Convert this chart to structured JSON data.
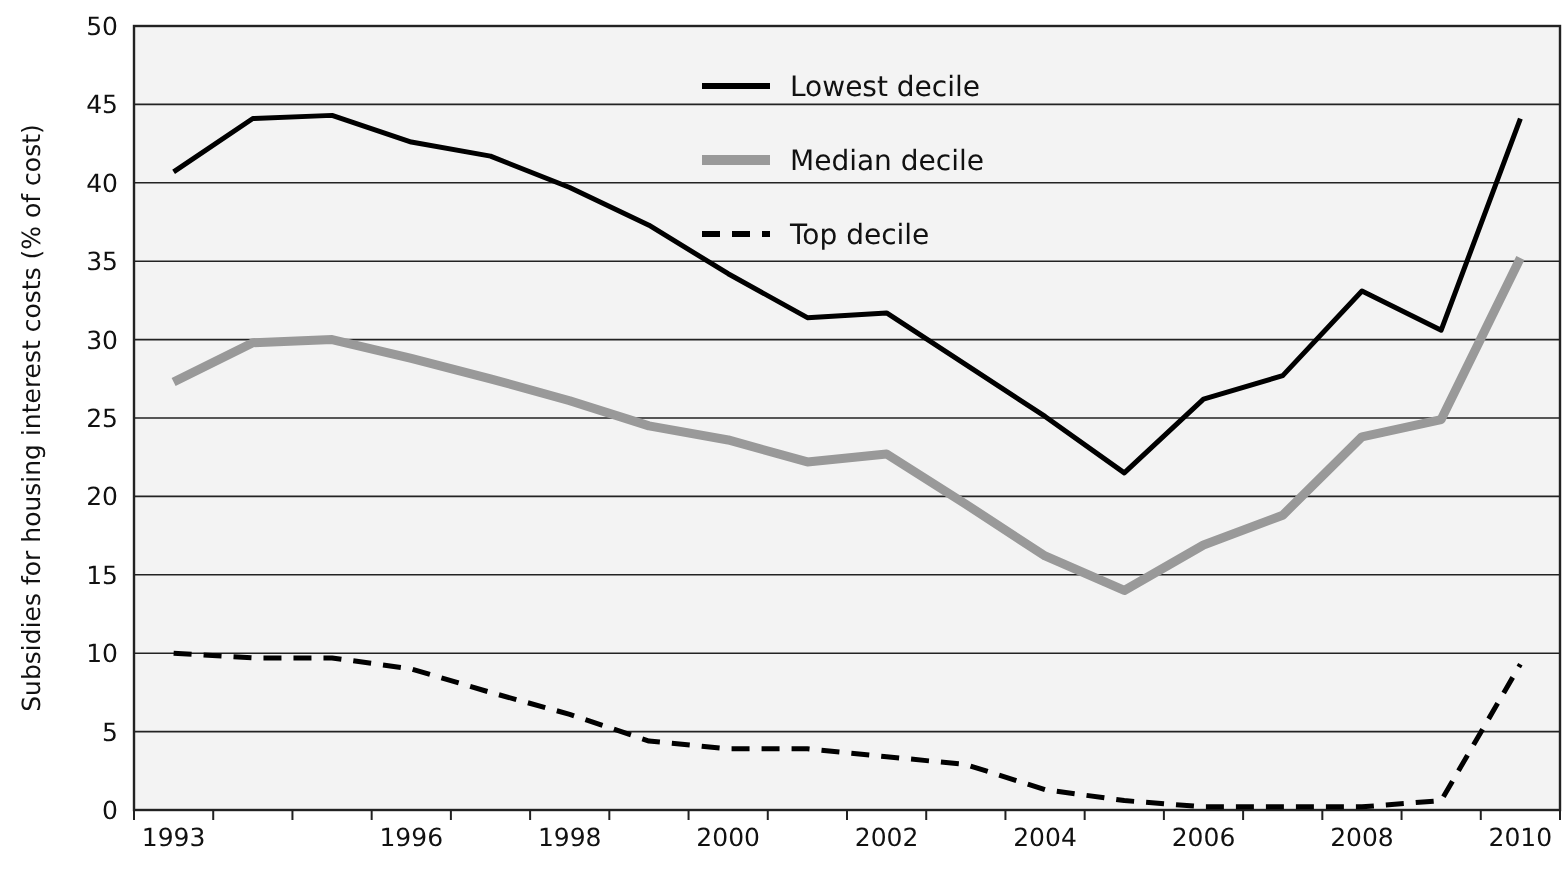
{
  "chart_data": {
    "type": "line",
    "ylabel": "Subsidies for housing interest costs (% of cost)",
    "categories": [
      "1993",
      null,
      null,
      "1996",
      null,
      "1998",
      null,
      "2000",
      null,
      "2002",
      null,
      "2004",
      null,
      "2006",
      null,
      "2008",
      null,
      "2010"
    ],
    "ylim": [
      0,
      50
    ],
    "yticks": [
      0,
      5,
      10,
      15,
      20,
      25,
      30,
      35,
      40,
      45,
      50
    ],
    "grid": "y",
    "legend": "top",
    "marker": "none",
    "series": [
      {
        "name": "Lowest decile",
        "color": "#000000",
        "line_style": "solid",
        "values": [
          40.7,
          44.1,
          44.3,
          42.6,
          41.7,
          39.7,
          37.3,
          34.2,
          31.4,
          31.7,
          28.4,
          25.1,
          21.5,
          26.2,
          27.7,
          33.1,
          30.6,
          44.1
        ]
      },
      {
        "name": "Median decile",
        "color": "#999999",
        "line_style": "solid",
        "values": [
          27.3,
          29.8,
          30.0,
          28.8,
          27.5,
          26.1,
          24.5,
          23.6,
          22.2,
          22.7,
          19.5,
          16.2,
          14.0,
          16.9,
          18.8,
          23.8,
          24.9,
          35.2
        ]
      },
      {
        "name": "Top decile",
        "color": "#000000",
        "line_style": "dashed",
        "values": [
          10.0,
          9.7,
          9.7,
          9.0,
          7.5,
          6.1,
          4.4,
          3.9,
          3.9,
          3.4,
          2.9,
          1.3,
          0.6,
          0.2,
          0.2,
          0.2,
          0.6,
          9.3
        ]
      }
    ]
  }
}
